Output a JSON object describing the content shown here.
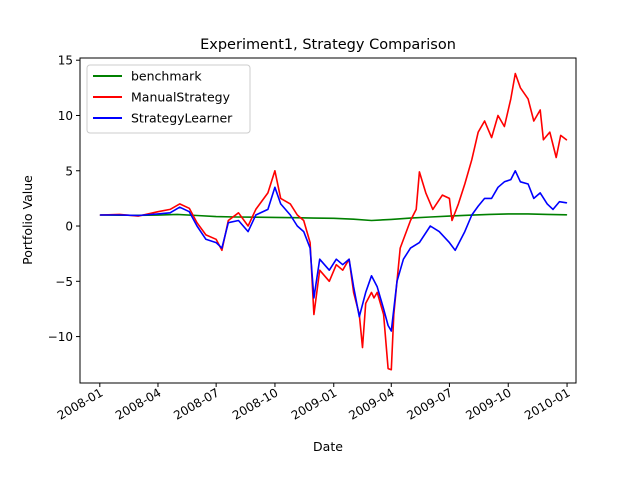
{
  "chart_data": {
    "type": "line",
    "title": "Experiment1, Strategy Comparison",
    "xlabel": "Date",
    "ylabel": "Portfolio Value",
    "x_axis": {
      "kind": "date",
      "range": [
        "2007-12-01",
        "2010-01-15"
      ],
      "ticks": [
        "2008-01",
        "2008-04",
        "2008-07",
        "2008-10",
        "2009-01",
        "2009-04",
        "2009-07",
        "2009-10",
        "2010-01"
      ]
    },
    "y_axis": {
      "range": [
        -14.2,
        15.2
      ],
      "ticks": [
        -10,
        -5,
        0,
        5,
        10,
        15
      ],
      "tick_labels": [
        "−10",
        "−5",
        "0",
        "5",
        "10",
        "15"
      ]
    },
    "grid": false,
    "legend": {
      "placement": "top-left"
    },
    "series": [
      {
        "name": "benchmark",
        "color": "#008000",
        "points": [
          [
            "2008-01-02",
            1.0
          ],
          [
            "2008-02-01",
            0.98
          ],
          [
            "2008-03-01",
            0.97
          ],
          [
            "2008-04-01",
            0.99
          ],
          [
            "2008-05-01",
            1.05
          ],
          [
            "2008-06-01",
            0.95
          ],
          [
            "2008-07-01",
            0.85
          ],
          [
            "2008-08-01",
            0.82
          ],
          [
            "2008-09-01",
            0.8
          ],
          [
            "2008-10-01",
            0.78
          ],
          [
            "2008-11-01",
            0.75
          ],
          [
            "2008-12-01",
            0.72
          ],
          [
            "2009-01-01",
            0.7
          ],
          [
            "2009-02-01",
            0.62
          ],
          [
            "2009-03-01",
            0.5
          ],
          [
            "2009-04-01",
            0.6
          ],
          [
            "2009-05-01",
            0.72
          ],
          [
            "2009-06-01",
            0.82
          ],
          [
            "2009-07-01",
            0.9
          ],
          [
            "2009-08-01",
            0.98
          ],
          [
            "2009-09-01",
            1.05
          ],
          [
            "2009-10-01",
            1.1
          ],
          [
            "2009-11-01",
            1.1
          ],
          [
            "2009-12-01",
            1.05
          ],
          [
            "2009-12-31",
            1.02
          ]
        ]
      },
      {
        "name": "ManualStrategy",
        "color": "#ff0000",
        "points": [
          [
            "2008-01-02",
            1.0
          ],
          [
            "2008-02-01",
            1.05
          ],
          [
            "2008-03-01",
            0.9
          ],
          [
            "2008-04-01",
            1.3
          ],
          [
            "2008-04-20",
            1.5
          ],
          [
            "2008-05-05",
            2.0
          ],
          [
            "2008-05-20",
            1.6
          ],
          [
            "2008-06-01",
            0.3
          ],
          [
            "2008-06-15",
            -0.8
          ],
          [
            "2008-07-01",
            -1.2
          ],
          [
            "2008-07-10",
            -2.2
          ],
          [
            "2008-07-20",
            0.5
          ],
          [
            "2008-08-05",
            1.2
          ],
          [
            "2008-08-20",
            0.0
          ],
          [
            "2008-09-01",
            1.5
          ],
          [
            "2008-09-20",
            3.0
          ],
          [
            "2008-10-01",
            5.0
          ],
          [
            "2008-10-10",
            2.5
          ],
          [
            "2008-10-25",
            2.0
          ],
          [
            "2008-11-05",
            1.0
          ],
          [
            "2008-11-15",
            0.5
          ],
          [
            "2008-11-25",
            -1.5
          ],
          [
            "2008-12-01",
            -8.0
          ],
          [
            "2008-12-10",
            -4.0
          ],
          [
            "2008-12-25",
            -5.0
          ],
          [
            "2009-01-05",
            -3.5
          ],
          [
            "2009-01-15",
            -4.0
          ],
          [
            "2009-01-25",
            -3.0
          ],
          [
            "2009-02-01",
            -6.0
          ],
          [
            "2009-02-10",
            -8.0
          ],
          [
            "2009-02-15",
            -11.0
          ],
          [
            "2009-02-20",
            -7.0
          ],
          [
            "2009-03-01",
            -6.0
          ],
          [
            "2009-03-05",
            -6.5
          ],
          [
            "2009-03-10",
            -6.0
          ],
          [
            "2009-03-20",
            -8.0
          ],
          [
            "2009-03-27",
            -12.9
          ],
          [
            "2009-04-01",
            -13.0
          ],
          [
            "2009-04-05",
            -8.0
          ],
          [
            "2009-04-15",
            -2.0
          ],
          [
            "2009-05-01",
            0.5
          ],
          [
            "2009-05-10",
            1.5
          ],
          [
            "2009-05-15",
            4.9
          ],
          [
            "2009-05-25",
            3.0
          ],
          [
            "2009-06-05",
            1.5
          ],
          [
            "2009-06-20",
            2.8
          ],
          [
            "2009-07-01",
            2.5
          ],
          [
            "2009-07-05",
            0.5
          ],
          [
            "2009-07-15",
            2.0
          ],
          [
            "2009-07-25",
            3.8
          ],
          [
            "2009-08-05",
            6.0
          ],
          [
            "2009-08-15",
            8.5
          ],
          [
            "2009-08-25",
            9.5
          ],
          [
            "2009-09-05",
            8.0
          ],
          [
            "2009-09-15",
            10.0
          ],
          [
            "2009-09-25",
            9.0
          ],
          [
            "2009-10-05",
            11.5
          ],
          [
            "2009-10-12",
            13.8
          ],
          [
            "2009-10-20",
            12.5
          ],
          [
            "2009-11-01",
            11.5
          ],
          [
            "2009-11-10",
            9.5
          ],
          [
            "2009-11-20",
            10.5
          ],
          [
            "2009-11-25",
            7.8
          ],
          [
            "2009-12-05",
            8.5
          ],
          [
            "2009-12-15",
            6.2
          ],
          [
            "2009-12-22",
            8.2
          ],
          [
            "2009-12-31",
            7.8
          ]
        ]
      },
      {
        "name": "StrategyLearner",
        "color": "#0000ff",
        "points": [
          [
            "2008-01-02",
            1.0
          ],
          [
            "2008-02-01",
            1.0
          ],
          [
            "2008-03-01",
            0.95
          ],
          [
            "2008-04-01",
            1.1
          ],
          [
            "2008-04-20",
            1.2
          ],
          [
            "2008-05-05",
            1.7
          ],
          [
            "2008-05-20",
            1.3
          ],
          [
            "2008-06-01",
            0.0
          ],
          [
            "2008-06-15",
            -1.2
          ],
          [
            "2008-07-01",
            -1.5
          ],
          [
            "2008-07-10",
            -2.0
          ],
          [
            "2008-07-20",
            0.3
          ],
          [
            "2008-08-05",
            0.5
          ],
          [
            "2008-08-20",
            -0.5
          ],
          [
            "2008-09-01",
            1.0
          ],
          [
            "2008-09-20",
            1.5
          ],
          [
            "2008-10-01",
            3.5
          ],
          [
            "2008-10-10",
            2.0
          ],
          [
            "2008-10-25",
            1.0
          ],
          [
            "2008-11-05",
            0.0
          ],
          [
            "2008-11-15",
            -0.5
          ],
          [
            "2008-11-25",
            -2.0
          ],
          [
            "2008-12-01",
            -6.5
          ],
          [
            "2008-12-10",
            -3.0
          ],
          [
            "2008-12-25",
            -4.0
          ],
          [
            "2009-01-05",
            -3.0
          ],
          [
            "2009-01-15",
            -3.5
          ],
          [
            "2009-01-25",
            -3.0
          ],
          [
            "2009-02-01",
            -5.5
          ],
          [
            "2009-02-10",
            -8.2
          ],
          [
            "2009-02-20",
            -6.0
          ],
          [
            "2009-03-01",
            -4.5
          ],
          [
            "2009-03-10",
            -5.5
          ],
          [
            "2009-03-20",
            -7.5
          ],
          [
            "2009-03-27",
            -9.0
          ],
          [
            "2009-04-01",
            -9.5
          ],
          [
            "2009-04-10",
            -5.0
          ],
          [
            "2009-04-20",
            -3.0
          ],
          [
            "2009-05-01",
            -2.0
          ],
          [
            "2009-05-15",
            -1.5
          ],
          [
            "2009-06-01",
            0.0
          ],
          [
            "2009-06-15",
            -0.5
          ],
          [
            "2009-07-01",
            -1.5
          ],
          [
            "2009-07-10",
            -2.2
          ],
          [
            "2009-07-25",
            -0.5
          ],
          [
            "2009-08-05",
            1.0
          ],
          [
            "2009-08-15",
            1.8
          ],
          [
            "2009-08-25",
            2.5
          ],
          [
            "2009-09-05",
            2.5
          ],
          [
            "2009-09-15",
            3.5
          ],
          [
            "2009-09-25",
            4.0
          ],
          [
            "2009-10-05",
            4.2
          ],
          [
            "2009-10-12",
            5.0
          ],
          [
            "2009-10-20",
            4.0
          ],
          [
            "2009-11-01",
            3.8
          ],
          [
            "2009-11-10",
            2.5
          ],
          [
            "2009-11-20",
            3.0
          ],
          [
            "2009-12-01",
            2.0
          ],
          [
            "2009-12-10",
            1.5
          ],
          [
            "2009-12-20",
            2.2
          ],
          [
            "2009-12-31",
            2.1
          ]
        ]
      }
    ]
  }
}
